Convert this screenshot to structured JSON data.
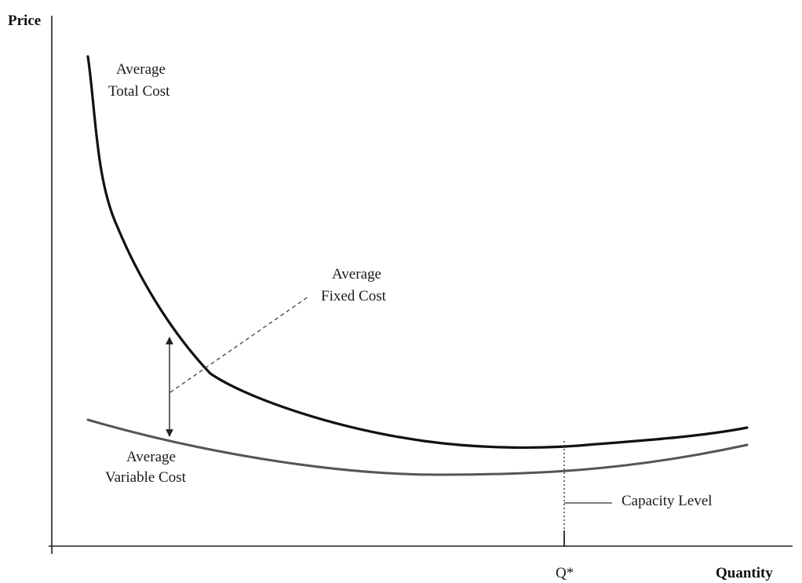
{
  "axes": {
    "y_label": "Price",
    "x_label": "Quantity",
    "q_star_label": "Q*"
  },
  "curves": {
    "atc": {
      "line1": "Average",
      "line2": "Total Cost"
    },
    "avc": {
      "line1": "Average",
      "line2": "Variable Cost"
    },
    "afc": {
      "line1": "Average",
      "line2": "Fixed Cost"
    }
  },
  "capacity": {
    "label": "Capacity Level"
  },
  "colors": {
    "axis": "#222222",
    "atc_curve": "#111111",
    "avc_curve": "#555555",
    "text": "#1a1a1a"
  }
}
